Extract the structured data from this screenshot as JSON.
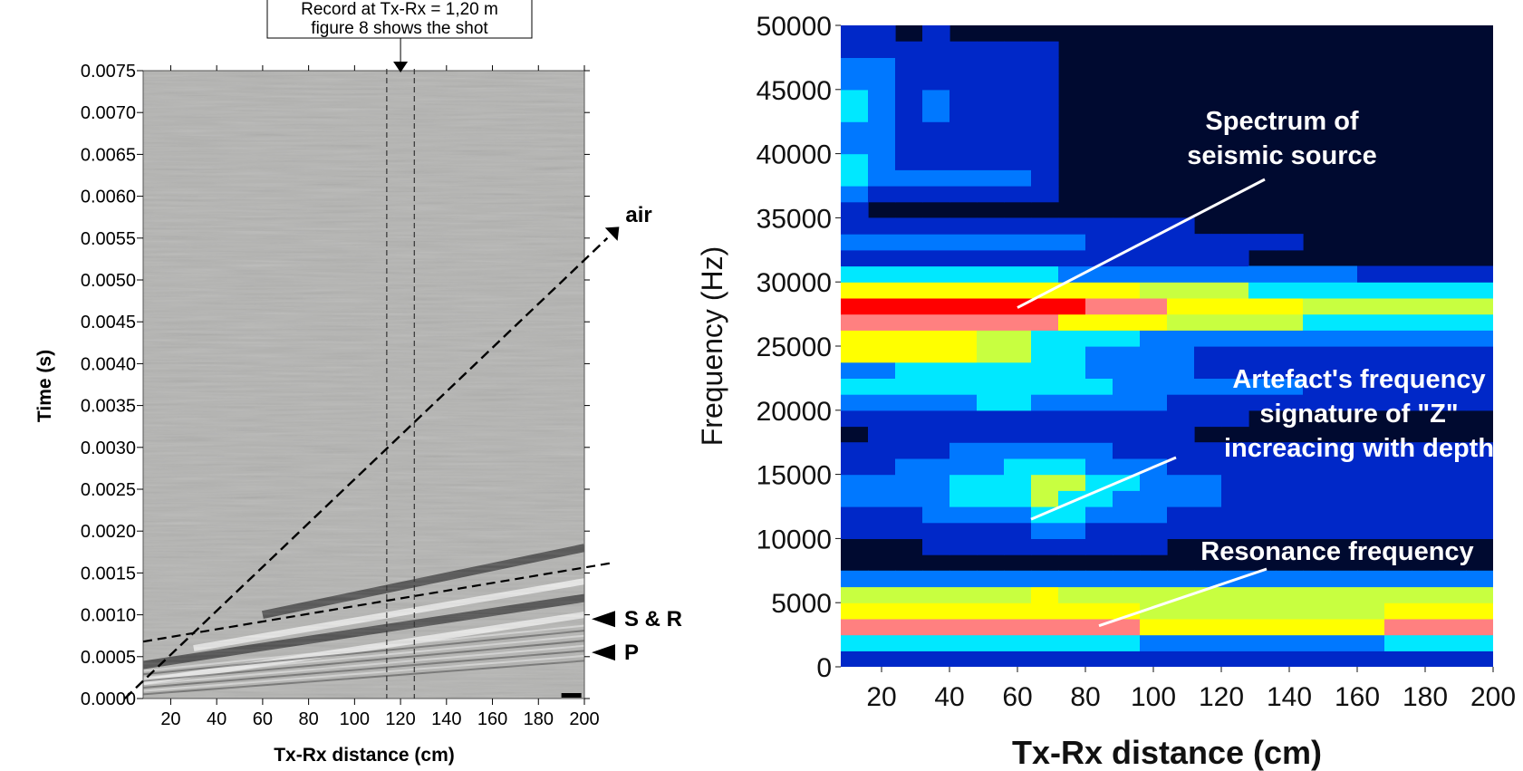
{
  "chart_data": [
    {
      "type": "heatmap",
      "subtype": "seismogram-wiggle-image",
      "xlabel": "Tx-Rx distance (cm)",
      "ylabel": "Time (s)",
      "xlim": [
        8,
        200
      ],
      "ylim": [
        0.0,
        0.0075
      ],
      "x_ticks": [
        20,
        40,
        60,
        80,
        100,
        120,
        140,
        160,
        180,
        200
      ],
      "y_ticks": [
        "0.0000",
        "0.0005",
        "0.0010",
        "0.0015",
        "0.0020",
        "0.0025",
        "0.0030",
        "0.0035",
        "0.0040",
        "0.0045",
        "0.0050",
        "0.0055",
        "0.0060",
        "0.0065",
        "0.0070",
        "0.0075"
      ],
      "colors": {
        "background": "#b4b4b2",
        "dark_event": "#3e3e3e",
        "light_event": "#f0f0f0"
      },
      "record_marker": {
        "text_line1": "Record at Tx-Rx = 1,20 m",
        "text_line2": "figure 8 shows the shot",
        "x": 120,
        "window": [
          114,
          126
        ]
      },
      "events": [
        {
          "label": "air",
          "line": [
            [
              0,
              0.0
            ],
            [
              210,
              0.0055
            ]
          ]
        },
        {
          "label": "S & R",
          "marker_time": 0.00095
        },
        {
          "label": "P",
          "marker_time": 0.00055
        }
      ],
      "reference_line": [
        [
          8,
          0.00068
        ],
        [
          212,
          0.00162
        ]
      ],
      "bright_bands": [
        {
          "start": [
            8,
            0.0002
          ],
          "end": [
            200,
            0.001
          ],
          "tone": "light"
        },
        {
          "start": [
            8,
            0.0004
          ],
          "end": [
            200,
            0.0012
          ],
          "tone": "dark"
        },
        {
          "start": [
            30,
            0.0006
          ],
          "end": [
            200,
            0.0014
          ],
          "tone": "light"
        },
        {
          "start": [
            60,
            0.001
          ],
          "end": [
            200,
            0.0018
          ],
          "tone": "dark"
        }
      ]
    },
    {
      "type": "heatmap",
      "subtype": "frequency-spectrum",
      "xlabel": "Tx-Rx distance (cm)",
      "ylabel": "Frequency (Hz)",
      "xlim": [
        8,
        200
      ],
      "ylim": [
        0,
        50000
      ],
      "x_ticks": [
        20,
        40,
        60,
        80,
        100,
        120,
        140,
        160,
        180,
        200
      ],
      "y_ticks": [
        0,
        5000,
        10000,
        15000,
        20000,
        25000,
        30000,
        35000,
        40000,
        45000,
        50000
      ],
      "colormap": [
        "#000a30",
        "#0028c8",
        "#0078ff",
        "#00e8ff",
        "#c8ff40",
        "#ffff00",
        "#ff8080",
        "#ff0000"
      ],
      "x_centers": [
        10,
        18,
        26,
        34,
        42,
        50,
        58,
        66,
        74,
        82,
        90,
        98,
        106,
        114,
        122,
        130,
        138,
        146,
        154,
        162,
        170,
        178,
        186,
        194
      ],
      "bands": [
        {
          "f": 28000,
          "width": 2600,
          "amp": [
            7,
            7,
            7,
            7,
            7,
            7,
            7,
            7,
            6.6,
            6.2,
            6,
            5.6,
            5.2,
            5,
            5,
            4.6,
            4.6,
            4.2,
            4.2,
            4,
            4,
            3.8,
            3.6,
            3.6
          ]
        },
        {
          "f": 25000,
          "width": 1400,
          "amp": [
            6,
            6,
            6,
            5.8,
            5.6,
            5,
            5,
            4.2,
            3.4,
            3,
            2.6,
            2.3,
            2,
            1.8,
            1.6,
            1.5,
            1.4,
            1.4,
            1.3,
            1.3,
            1.2,
            1.2,
            1.2,
            1.2
          ]
        },
        {
          "f": 22000,
          "width": 2400,
          "amp": [
            2.8,
            3,
            3.2,
            3.3,
            3.4,
            3.5,
            3.5,
            3.4,
            3.2,
            2.8,
            2.4,
            2.2,
            2,
            1.8,
            1.7,
            1.6,
            1.6,
            1.5,
            1.5,
            1.4,
            1.4,
            1.4,
            1.4,
            1.4
          ]
        },
        {
          "f": 14000,
          "width": 3800,
          "amp": [
            1.6,
            1.8,
            2,
            2.4,
            2.8,
            3,
            3.2,
            3.8,
            3.6,
            3,
            2.6,
            2.2,
            1.8,
            1.6,
            1.4,
            1.4,
            1.3,
            1.3,
            1.3,
            1.3,
            1.3,
            1.3,
            1.3,
            1.3
          ]
        },
        {
          "f": 3500,
          "width": 1800,
          "amp": [
            5.8,
            6,
            6.2,
            6.2,
            6.4,
            6.4,
            6.4,
            6.3,
            6.2,
            6,
            5.8,
            5.6,
            5.6,
            5.4,
            5.4,
            5.5,
            5.5,
            5.6,
            5.6,
            5.6,
            5.8,
            5.8,
            6,
            6
          ]
        },
        {
          "f": 5500,
          "width": 1500,
          "amp": [
            3.6,
            3.6,
            3.8,
            4,
            4.2,
            4.2,
            4.4,
            4.6,
            4.5,
            4.4,
            4.2,
            4,
            3.8,
            3.6,
            3.6,
            3.6,
            3.8,
            3.8,
            3.8,
            4,
            4,
            4,
            4.2,
            4.2
          ]
        },
        {
          "f": 1500,
          "width": 900,
          "amp": [
            3.4,
            3.4,
            3.2,
            3.2,
            3.2,
            3,
            3,
            3,
            3,
            2.8,
            2.8,
            2.8,
            2.8,
            2.8,
            2.8,
            2.8,
            2.8,
            2.8,
            2.8,
            2.8,
            2.8,
            2.8,
            2.8,
            2.8
          ]
        },
        {
          "f": 44000,
          "width": 5000,
          "amp": [
            2.6,
            2.4,
            1.4,
            1.6,
            1.4,
            1.5,
            1.4,
            1.3,
            0.3,
            0.2,
            0.2,
            0.2,
            0.2,
            0.2,
            0.2,
            0.2,
            0.2,
            0.2,
            0.2,
            0.2,
            0.2,
            0.2,
            0.2,
            0.2
          ]
        },
        {
          "f": 38500,
          "width": 2500,
          "amp": [
            3,
            1.8,
            1.6,
            1.6,
            1.6,
            1.6,
            1.6,
            1.5,
            0.4,
            0.3,
            0.2,
            0.2,
            0.2,
            0.2,
            0.2,
            0.2,
            0.2,
            0.2,
            0.2,
            0.2,
            0.2,
            0.2,
            0.2,
            0.2
          ]
        },
        {
          "f": 33000,
          "width": 2000,
          "amp": [
            1.6,
            1.6,
            1.8,
            1.8,
            2,
            2,
            2,
            2,
            1.6,
            1.4,
            1.2,
            1,
            0.9,
            0.8,
            0.7,
            0.6,
            0.6,
            0.5,
            0.5,
            0.5,
            0.5,
            0.5,
            0.5,
            0.5
          ]
        }
      ],
      "annotations": [
        {
          "text_lines": [
            "Spectrum of",
            "seismic source"
          ],
          "arrow_to": [
            60,
            28000
          ]
        },
        {
          "text_lines": [
            "Artefact's frequency",
            "signature of \"Z\"",
            "increacing with depth"
          ],
          "arrow_to": [
            64,
            11500
          ]
        },
        {
          "text_lines": [
            "Resonance frequency"
          ],
          "arrow_to": [
            84,
            3200
          ]
        }
      ]
    }
  ]
}
